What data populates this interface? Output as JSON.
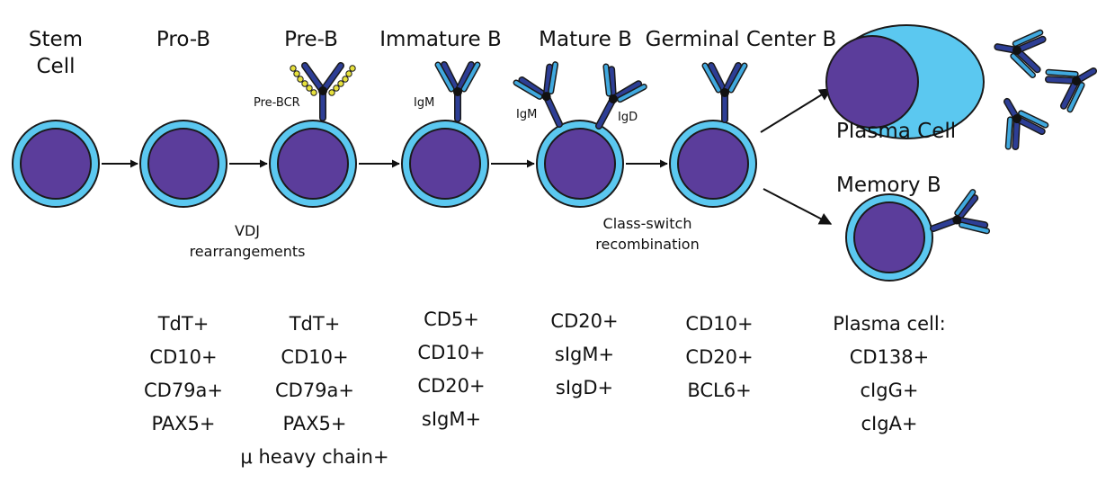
{
  "colors": {
    "nucleus": "#5b3d9b",
    "membrane": "#5bc8f0",
    "outline": "#1a1a1a",
    "heavy_chain": "#2d3e95",
    "light_chain": "#40a9df",
    "surrogate_light": "#e6e03c"
  },
  "stages": [
    {
      "title_lines": [
        "Stem",
        "Cell"
      ],
      "markers": []
    },
    {
      "title_lines": [
        "Pro-B"
      ],
      "markers": [
        "TdT+",
        "CD10+",
        "CD79a+",
        "PAX5+"
      ]
    },
    {
      "title_lines": [
        "Pre-B"
      ],
      "markers": [
        "TdT+",
        "CD10+",
        "CD79a+",
        "PAX5+",
        "μ heavy chain+"
      ]
    },
    {
      "title_lines": [
        "Immature B"
      ],
      "markers": [
        "CD5+",
        "CD10+",
        "CD20+",
        "sIgM+"
      ]
    },
    {
      "title_lines": [
        "Mature B"
      ],
      "markers": [
        "CD20+",
        "sIgM+",
        "sIgD+"
      ]
    },
    {
      "title_lines": [
        "Germinal Center B"
      ],
      "markers": [
        "CD10+",
        "CD20+",
        "BCL6+"
      ]
    }
  ],
  "antibody_labels": {
    "pre_bcr": "Pre-BCR",
    "immature_igm": "IgM",
    "mature_igm": "IgM",
    "mature_igd": "IgD"
  },
  "process_notes": {
    "vdj": [
      "VDJ",
      "rearrangements"
    ],
    "class_switch": [
      "Class-switch",
      "recombination"
    ]
  },
  "outcomes": {
    "plasma_cell": {
      "label": "Plasma Cell"
    },
    "memory_b": {
      "label": "Memory B"
    },
    "plasma_markers": [
      "Plasma cell:",
      "CD138+",
      "cIgG+",
      "cIgA+"
    ]
  }
}
